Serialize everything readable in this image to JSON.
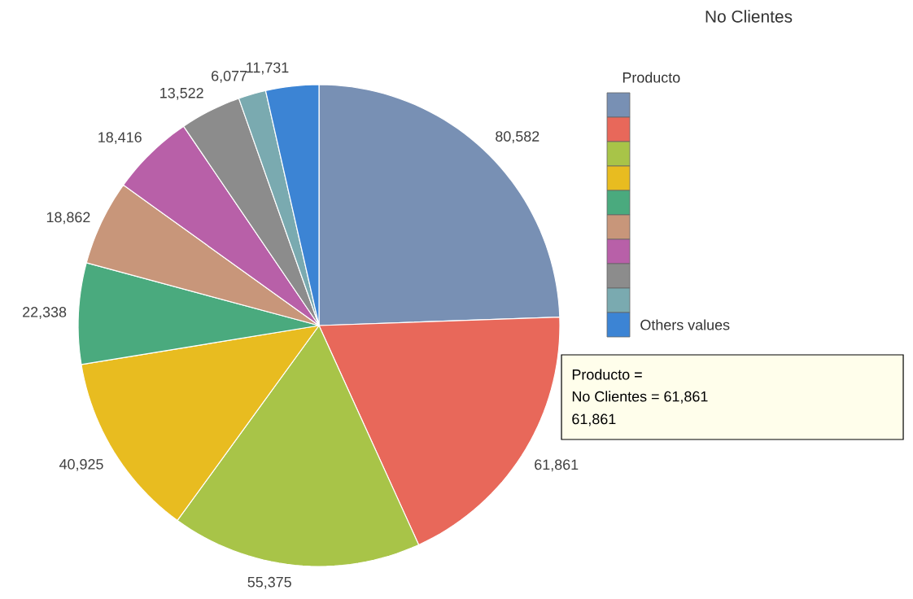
{
  "chart_data": {
    "type": "pie",
    "title": "No Clientes",
    "legend_title": "Producto",
    "categories": [
      null,
      null,
      null,
      null,
      null,
      null,
      null,
      null,
      null,
      "Others values"
    ],
    "values": [
      80582,
      61861,
      55375,
      40925,
      22338,
      18862,
      18416,
      13522,
      6077,
      11731
    ],
    "colors": [
      "#7890b4",
      "#e8685a",
      "#a8c448",
      "#e8bc20",
      "#4aaa7e",
      "#c8967a",
      "#b860a8",
      "#8c8c8c",
      "#7aaab0",
      "#3c84d4"
    ],
    "value_labels": [
      "80,582",
      "61,861",
      "55,375",
      "40,925",
      "22,338",
      "18,862",
      "18,416",
      "13,522",
      "6,077",
      "11,731"
    ],
    "legend": "top right",
    "annotations": [
      "Producto =",
      "No Clientes = 61,861",
      "61,861"
    ]
  }
}
